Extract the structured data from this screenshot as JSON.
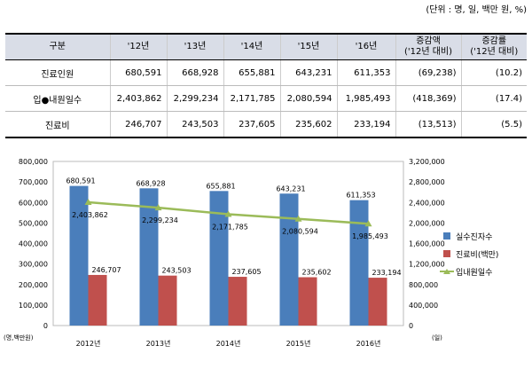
{
  "unit_note": "(단위 : 명, 일, 백만 원, %)",
  "table": {
    "headers": [
      "구분",
      "'12년",
      "'13년",
      "'14년",
      "'15년",
      "'16년",
      "증감액\n('12년 대비)",
      "증감률\n('12년 대비)"
    ],
    "rows": [
      {
        "label": "진료인원",
        "values": [
          "680,591",
          "668,928",
          "655,881",
          "643,231",
          "611,353",
          "(69,238)",
          "(10.2)"
        ]
      },
      {
        "label": "입●내원일수",
        "values": [
          "2,403,862",
          "2,299,234",
          "2,171,785",
          "2,080,594",
          "1,985,493",
          "(418,369)",
          "(17.4)"
        ]
      },
      {
        "label": "진료비",
        "values": [
          "246,707",
          "243,503",
          "237,605",
          "235,602",
          "233,194",
          "(13,513)",
          "(5.5)"
        ]
      }
    ]
  },
  "chart_data": {
    "type": "bar",
    "categories": [
      "2012년",
      "2013년",
      "2014년",
      "2015년",
      "2016년"
    ],
    "series": [
      {
        "name": "실수진자수",
        "kind": "bar",
        "axis": "left",
        "color": "#4a7ebb",
        "values": [
          680591,
          668928,
          655881,
          643231,
          611353
        ],
        "labels": [
          "680,591",
          "668,928",
          "655,881",
          "643,231",
          "611,353"
        ]
      },
      {
        "name": "진료비(백만)",
        "kind": "bar",
        "axis": "left",
        "color": "#c0504d",
        "values": [
          246707,
          243503,
          237605,
          235602,
          233194
        ],
        "labels": [
          "246,707",
          "243,503",
          "237,605",
          "235,602",
          "233,194"
        ]
      },
      {
        "name": "입내원일수",
        "kind": "line",
        "axis": "right",
        "color": "#9bbb59",
        "values": [
          2403862,
          2299234,
          2171785,
          2080594,
          1985493
        ],
        "labels": [
          "2,403,862",
          "2,299,234",
          "2,171,785",
          "2,080,594",
          "1,985,493"
        ]
      }
    ],
    "left_axis": {
      "ylim": [
        0,
        800000
      ],
      "ticks": [
        "0",
        "100,000",
        "200,000",
        "300,000",
        "400,000",
        "500,000",
        "600,000",
        "700,000",
        "800,000"
      ],
      "unit_label": "(명,백만원)"
    },
    "right_axis": {
      "ylim": [
        0,
        3200000
      ],
      "ticks": [
        "0",
        "400,000",
        "800,000",
        "1,200,000",
        "1,600,000",
        "2,000,000",
        "2,400,000",
        "2,800,000",
        "3,200,000"
      ],
      "unit_label": "(일)"
    },
    "legend_position": "right",
    "grid": false
  }
}
